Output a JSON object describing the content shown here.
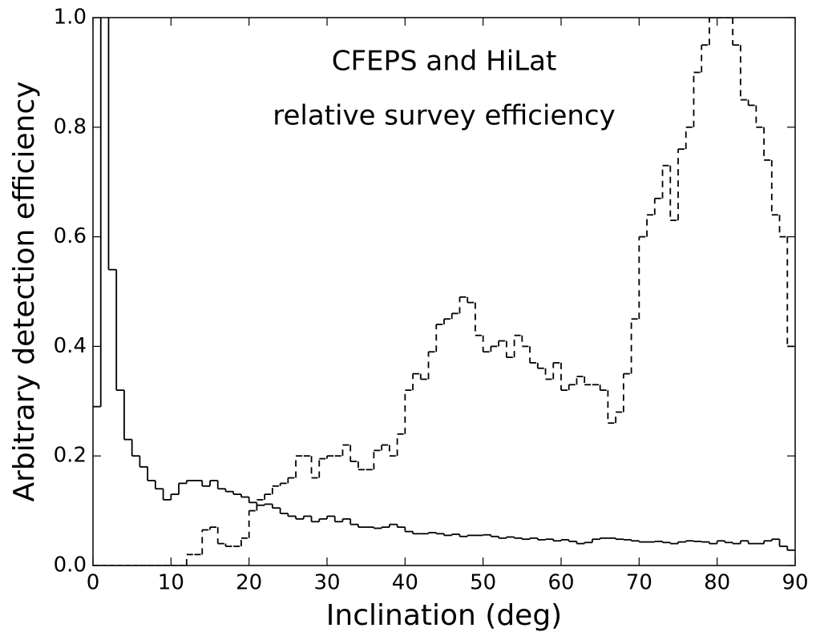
{
  "chart_data": {
    "type": "step-histogram",
    "title": "CFEPS and HiLat",
    "subtitle": "relative survey efficiency",
    "xlabel": "Inclination (deg)",
    "ylabel": "Arbitrary detection efficiency",
    "xlim": [
      0,
      90
    ],
    "ylim": [
      0,
      1
    ],
    "xticks": [
      0,
      10,
      20,
      30,
      40,
      50,
      60,
      70,
      80,
      90
    ],
    "yticks": [
      {
        "value": 0,
        "label": "0.0"
      },
      {
        "value": 0.2,
        "label": "0.2"
      },
      {
        "value": 0.4,
        "label": "0.4"
      },
      {
        "value": 0.6,
        "label": "0.6"
      },
      {
        "value": 0.8,
        "label": "0.8"
      },
      {
        "value": 1,
        "label": "1.0"
      }
    ],
    "grid": false,
    "bins": [
      0,
      1,
      2,
      3,
      4,
      5,
      6,
      7,
      8,
      9,
      10,
      11,
      12,
      13,
      14,
      15,
      16,
      17,
      18,
      19,
      20,
      21,
      22,
      23,
      24,
      25,
      26,
      27,
      28,
      29,
      30,
      31,
      32,
      33,
      34,
      35,
      36,
      37,
      38,
      39,
      40,
      41,
      42,
      43,
      44,
      45,
      46,
      47,
      48,
      49,
      50,
      51,
      52,
      53,
      54,
      55,
      56,
      57,
      58,
      59,
      60,
      61,
      62,
      63,
      64,
      65,
      66,
      67,
      68,
      69,
      70,
      71,
      72,
      73,
      74,
      75,
      76,
      77,
      78,
      79,
      80,
      81,
      82,
      83,
      84,
      85,
      86,
      87,
      88,
      89,
      90
    ],
    "series": [
      {
        "color": "#000000",
        "linestyle": "solid",
        "values": [
          0.29,
          2.0,
          0.54,
          0.32,
          0.23,
          0.2,
          0.18,
          0.155,
          0.14,
          0.12,
          0.13,
          0.15,
          0.155,
          0.155,
          0.145,
          0.155,
          0.14,
          0.135,
          0.13,
          0.125,
          0.115,
          0.11,
          0.112,
          0.105,
          0.095,
          0.09,
          0.085,
          0.09,
          0.08,
          0.085,
          0.09,
          0.08,
          0.085,
          0.075,
          0.07,
          0.07,
          0.068,
          0.07,
          0.075,
          0.07,
          0.062,
          0.058,
          0.058,
          0.06,
          0.058,
          0.055,
          0.057,
          0.053,
          0.055,
          0.055,
          0.056,
          0.053,
          0.05,
          0.052,
          0.05,
          0.048,
          0.05,
          0.047,
          0.048,
          0.045,
          0.047,
          0.044,
          0.04,
          0.042,
          0.048,
          0.05,
          0.05,
          0.048,
          0.047,
          0.045,
          0.043,
          0.043,
          0.044,
          0.042,
          0.04,
          0.043,
          0.045,
          0.044,
          0.043,
          0.04,
          0.045,
          0.042,
          0.04,
          0.045,
          0.04,
          0.04,
          0.045,
          0.048,
          0.035,
          0.028
        ]
      },
      {
        "color": "#000000",
        "linestyle": "dashed",
        "values": [
          0,
          0,
          0,
          0,
          0,
          0,
          0,
          0,
          0,
          0,
          0,
          0,
          0.02,
          0.02,
          0.065,
          0.07,
          0.04,
          0.035,
          0.035,
          0.05,
          0.1,
          0.12,
          0.13,
          0.145,
          0.15,
          0.16,
          0.2,
          0.2,
          0.16,
          0.195,
          0.2,
          0.2,
          0.22,
          0.19,
          0.175,
          0.175,
          0.21,
          0.22,
          0.2,
          0.24,
          0.32,
          0.35,
          0.34,
          0.39,
          0.44,
          0.45,
          0.46,
          0.49,
          0.48,
          0.42,
          0.39,
          0.4,
          0.41,
          0.38,
          0.42,
          0.4,
          0.37,
          0.36,
          0.34,
          0.37,
          0.32,
          0.33,
          0.345,
          0.33,
          0.33,
          0.32,
          0.26,
          0.28,
          0.35,
          0.45,
          0.6,
          0.64,
          0.67,
          0.73,
          0.63,
          0.76,
          0.8,
          0.9,
          0.95,
          1.0,
          1.0,
          1.0,
          0.95,
          0.85,
          0.84,
          0.8,
          0.74,
          0.64,
          0.6,
          0.4
        ]
      }
    ]
  }
}
